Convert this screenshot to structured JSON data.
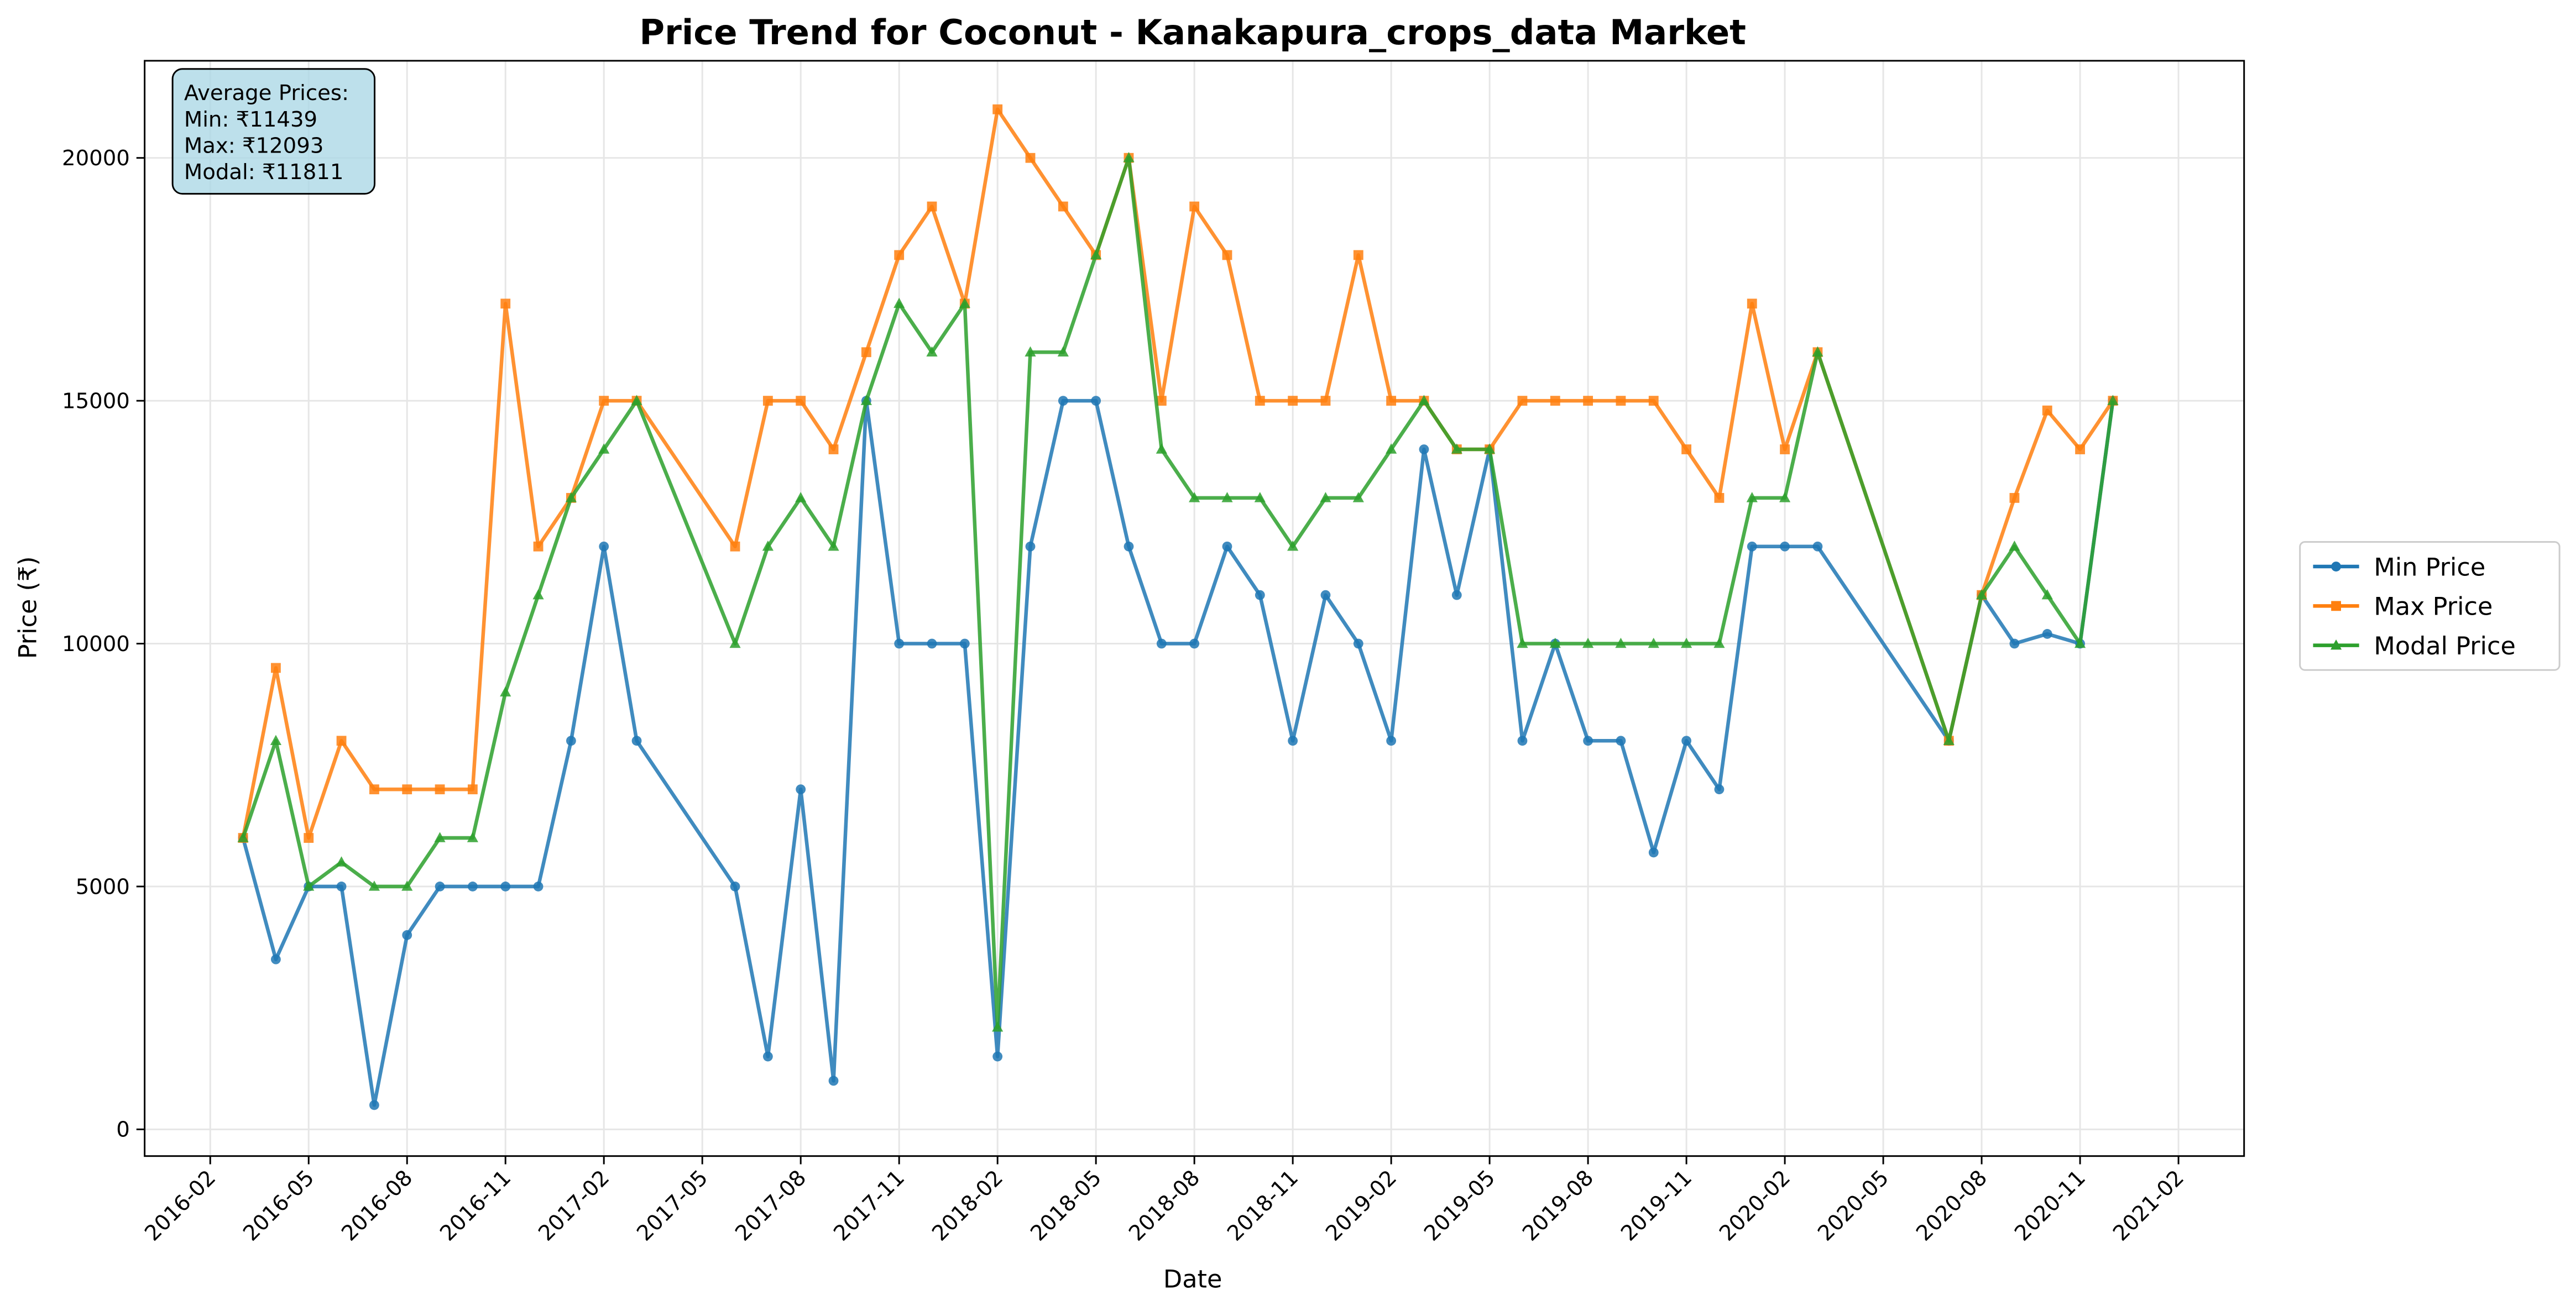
{
  "chart_data": {
    "type": "line",
    "title": "Price Trend for Coconut - Kanakapura_crops_data Market",
    "xlabel": "Date",
    "ylabel": "Price (₹)",
    "annotation": [
      "Average Prices:",
      "Min: ₹11439",
      "Max: ₹12093",
      "Modal: ₹11811"
    ],
    "x": [
      "2016-03",
      "2016-04",
      "2016-05",
      "2016-06",
      "2016-07",
      "2016-08",
      "2016-09",
      "2016-10",
      "2016-11",
      "2016-12",
      "2017-01",
      "2017-02",
      "2017-03",
      "2017-06",
      "2017-07",
      "2017-08",
      "2017-09",
      "2017-10",
      "2017-11",
      "2017-12",
      "2018-01",
      "2018-02",
      "2018-03",
      "2018-04",
      "2018-05",
      "2018-06",
      "2018-07",
      "2018-08",
      "2018-09",
      "2018-10",
      "2018-11",
      "2018-12",
      "2019-01",
      "2019-02",
      "2019-03",
      "2019-04",
      "2019-05",
      "2019-06",
      "2019-07",
      "2019-08",
      "2019-09",
      "2019-10",
      "2019-11",
      "2019-12",
      "2020-01",
      "2020-02",
      "2020-03",
      "2020-07",
      "2020-08",
      "2020-09",
      "2020-10",
      "2020-11",
      "2020-12"
    ],
    "series": [
      {
        "name": "Min Price",
        "color": "#1f77b4",
        "marker": "circle",
        "values": [
          6000,
          3500,
          5000,
          5000,
          500,
          4000,
          5000,
          5000,
          5000,
          5000,
          8000,
          12000,
          8000,
          5000,
          1500,
          7000,
          1000,
          15000,
          10000,
          10000,
          10000,
          1500,
          12000,
          15000,
          15000,
          12000,
          10000,
          10000,
          12000,
          11000,
          8000,
          11000,
          10000,
          8000,
          14000,
          11000,
          14000,
          8000,
          10000,
          8000,
          8000,
          5700,
          8000,
          7000,
          12000,
          12000,
          12000,
          8000,
          11000,
          10000,
          10200,
          10000,
          15000
        ]
      },
      {
        "name": "Max Price",
        "color": "#ff7f0e",
        "marker": "square",
        "values": [
          6000,
          9500,
          6000,
          8000,
          7000,
          7000,
          7000,
          7000,
          17000,
          12000,
          13000,
          15000,
          15000,
          12000,
          15000,
          15000,
          14000,
          16000,
          18000,
          19000,
          17000,
          21000,
          20000,
          19000,
          18000,
          20000,
          15000,
          19000,
          18000,
          15000,
          15000,
          15000,
          18000,
          15000,
          15000,
          14000,
          14000,
          15000,
          15000,
          15000,
          15000,
          15000,
          14000,
          13000,
          17000,
          14000,
          16000,
          8000,
          11000,
          13000,
          14800,
          14000,
          15000
        ]
      },
      {
        "name": "Modal Price",
        "color": "#2ca02c",
        "marker": "triangle",
        "values": [
          6000,
          8000,
          5000,
          5500,
          5000,
          5000,
          6000,
          6000,
          9000,
          11000,
          13000,
          14000,
          15000,
          10000,
          12000,
          13000,
          12000,
          15000,
          17000,
          16000,
          17000,
          2100,
          16000,
          16000,
          18000,
          20000,
          14000,
          13000,
          13000,
          13000,
          12000,
          13000,
          13000,
          14000,
          15000,
          14000,
          14000,
          10000,
          10000,
          10000,
          10000,
          10000,
          10000,
          10000,
          13000,
          13000,
          16000,
          8000,
          11000,
          12000,
          11000,
          10000,
          15000
        ]
      }
    ],
    "xlim": [
      "2015-12",
      "2021-04"
    ],
    "xticks": [
      "2016-02",
      "2016-05",
      "2016-08",
      "2016-11",
      "2017-02",
      "2017-05",
      "2017-08",
      "2017-11",
      "2018-02",
      "2018-05",
      "2018-08",
      "2018-11",
      "2019-02",
      "2019-05",
      "2019-08",
      "2019-11",
      "2020-02",
      "2020-05",
      "2020-08",
      "2020-11",
      "2021-02"
    ],
    "ylim": [
      -550,
      22000
    ],
    "yticks": [
      0,
      5000,
      10000,
      15000,
      20000
    ],
    "grid": true,
    "legend": "right"
  }
}
